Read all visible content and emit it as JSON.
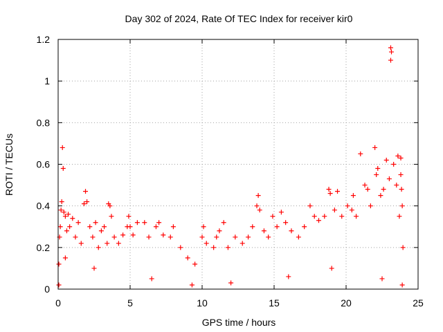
{
  "chart_data": {
    "type": "scatter",
    "title": "Day 302 of 2024, Rate Of TEC Index for receiver kir0",
    "xlabel": "GPS time / hours",
    "ylabel": "ROTI / TECUs",
    "xlim": [
      0,
      25
    ],
    "ylim": [
      0,
      1.2
    ],
    "xticks": [
      0,
      5,
      10,
      15,
      20,
      25
    ],
    "yticks": [
      0,
      0.2,
      0.4,
      0.6,
      0.8,
      1,
      1.2
    ],
    "xtick_labels": [
      "0",
      "5",
      "10",
      "15",
      "20",
      "25"
    ],
    "ytick_labels": [
      "0",
      "0.2",
      "0.4",
      "0.6",
      "0.8",
      "1",
      "1.2"
    ],
    "grid": true,
    "marker": "plus",
    "series_color": "#ff0000",
    "series": [
      {
        "values": [
          [
            0.05,
            0.12
          ],
          [
            0.1,
            0.25
          ],
          [
            0.15,
            0.3
          ],
          [
            0.2,
            0.38
          ],
          [
            0.25,
            0.42
          ],
          [
            0.3,
            0.68
          ],
          [
            0.35,
            0.58
          ],
          [
            0.4,
            0.37
          ],
          [
            0.5,
            0.35
          ],
          [
            0.6,
            0.28
          ],
          [
            0.7,
            0.36
          ],
          [
            0.8,
            0.3
          ],
          [
            1.0,
            0.34
          ],
          [
            1.2,
            0.25
          ],
          [
            1.4,
            0.32
          ],
          [
            1.6,
            0.22
          ],
          [
            1.8,
            0.41
          ],
          [
            1.9,
            0.47
          ],
          [
            2.0,
            0.42
          ],
          [
            2.2,
            0.3
          ],
          [
            2.4,
            0.25
          ],
          [
            2.6,
            0.32
          ],
          [
            2.8,
            0.2
          ],
          [
            3.0,
            0.28
          ],
          [
            3.2,
            0.3
          ],
          [
            3.4,
            0.22
          ],
          [
            3.5,
            0.41
          ],
          [
            3.6,
            0.4
          ],
          [
            3.7,
            0.35
          ],
          [
            3.9,
            0.25
          ],
          [
            4.2,
            0.22
          ],
          [
            4.5,
            0.26
          ],
          [
            4.8,
            0.3
          ],
          [
            4.9,
            0.35
          ],
          [
            5.0,
            0.3
          ],
          [
            5.2,
            0.26
          ],
          [
            5.5,
            0.32
          ],
          [
            6.0,
            0.32
          ],
          [
            6.3,
            0.25
          ],
          [
            6.8,
            0.3
          ],
          [
            7.0,
            0.32
          ],
          [
            7.3,
            0.26
          ],
          [
            7.8,
            0.25
          ],
          [
            8.0,
            0.3
          ],
          [
            8.5,
            0.2
          ],
          [
            9.0,
            0.15
          ],
          [
            9.5,
            0.12
          ],
          [
            10.0,
            0.25
          ],
          [
            10.1,
            0.3
          ],
          [
            10.3,
            0.22
          ],
          [
            10.8,
            0.2
          ],
          [
            11.0,
            0.25
          ],
          [
            11.2,
            0.28
          ],
          [
            11.5,
            0.32
          ],
          [
            11.8,
            0.2
          ],
          [
            12.3,
            0.25
          ],
          [
            12.8,
            0.22
          ],
          [
            13.2,
            0.25
          ],
          [
            13.5,
            0.3
          ],
          [
            13.8,
            0.4
          ],
          [
            13.9,
            0.45
          ],
          [
            14.0,
            0.38
          ],
          [
            14.3,
            0.28
          ],
          [
            14.6,
            0.25
          ],
          [
            14.9,
            0.35
          ],
          [
            15.2,
            0.3
          ],
          [
            15.5,
            0.37
          ],
          [
            15.8,
            0.32
          ],
          [
            16.2,
            0.28
          ],
          [
            16.7,
            0.25
          ],
          [
            17.1,
            0.3
          ],
          [
            17.5,
            0.4
          ],
          [
            17.8,
            0.35
          ],
          [
            18.1,
            0.33
          ],
          [
            18.5,
            0.35
          ],
          [
            18.8,
            0.48
          ],
          [
            18.9,
            0.46
          ],
          [
            19.2,
            0.38
          ],
          [
            19.4,
            0.47
          ],
          [
            19.7,
            0.35
          ],
          [
            20.1,
            0.4
          ],
          [
            20.4,
            0.38
          ],
          [
            20.5,
            0.45
          ],
          [
            20.7,
            0.35
          ],
          [
            21.0,
            0.65
          ],
          [
            21.3,
            0.5
          ],
          [
            21.5,
            0.48
          ],
          [
            21.7,
            0.4
          ],
          [
            22.0,
            0.68
          ],
          [
            22.1,
            0.55
          ],
          [
            22.2,
            0.58
          ],
          [
            22.4,
            0.45
          ],
          [
            22.6,
            0.48
          ],
          [
            22.8,
            0.62
          ],
          [
            23.0,
            0.53
          ],
          [
            23.1,
            1.16
          ],
          [
            23.15,
            1.14
          ],
          [
            23.1,
            1.1
          ],
          [
            23.3,
            0.6
          ],
          [
            23.5,
            0.5
          ],
          [
            23.6,
            0.64
          ],
          [
            23.7,
            0.35
          ],
          [
            23.8,
            0.63
          ],
          [
            23.8,
            0.55
          ],
          [
            23.85,
            0.48
          ],
          [
            23.9,
            0.4
          ],
          [
            23.95,
            0.2
          ],
          [
            0.05,
            0.02
          ],
          [
            0.5,
            0.15
          ],
          [
            2.5,
            0.1
          ],
          [
            6.5,
            0.05
          ],
          [
            9.3,
            0.02
          ],
          [
            12.0,
            0.03
          ],
          [
            16.0,
            0.06
          ],
          [
            19.0,
            0.1
          ],
          [
            22.5,
            0.05
          ],
          [
            23.9,
            0.02
          ]
        ]
      }
    ]
  }
}
